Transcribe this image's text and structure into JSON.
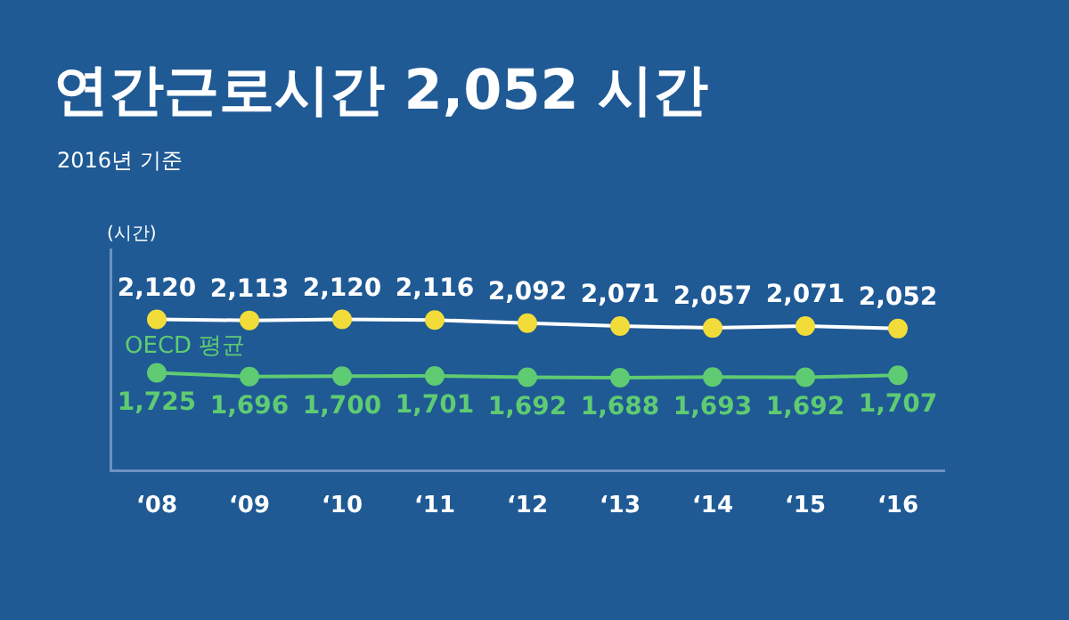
{
  "chart_data": {
    "type": "line",
    "title": "연간근로시간 2,052 시간",
    "subtitle": "2016년 기준",
    "ylabel": "(시간)",
    "categories": [
      "‘08",
      "‘09",
      "‘10",
      "‘11",
      "‘12",
      "‘13",
      "‘14",
      "‘15",
      "‘16"
    ],
    "series": [
      {
        "color": "#ffffff",
        "colors": [
          "#f2dc3a",
          "#f2dc3a",
          "#f2dc3a",
          "#f2dc3a",
          "#f2dc3a",
          "#f2dc3a",
          "#f2dc3a",
          "#f2dc3a",
          "#f2dc3a"
        ],
        "values": [
          2120,
          2113,
          2120,
          2116,
          2092,
          2071,
          2057,
          2071,
          2052
        ],
        "value_labels": [
          "2,120",
          "2,113",
          "2,120",
          "2,116",
          "2,092",
          "2,071",
          "2,057",
          "2,071",
          "2,052"
        ]
      },
      {
        "name": "OECD 평균",
        "color": "#5fcb72",
        "values": [
          1725,
          1696,
          1700,
          1701,
          1692,
          1688,
          1693,
          1692,
          1707
        ],
        "value_labels": [
          "1,725",
          "1,696",
          "1,700",
          "1,701",
          "1,692",
          "1,688",
          "1,693",
          "1,692",
          "1,707"
        ]
      }
    ],
    "tick_labels": "x",
    "grid": false,
    "legend": false,
    "marker": "circle",
    "line_style": "solid"
  }
}
